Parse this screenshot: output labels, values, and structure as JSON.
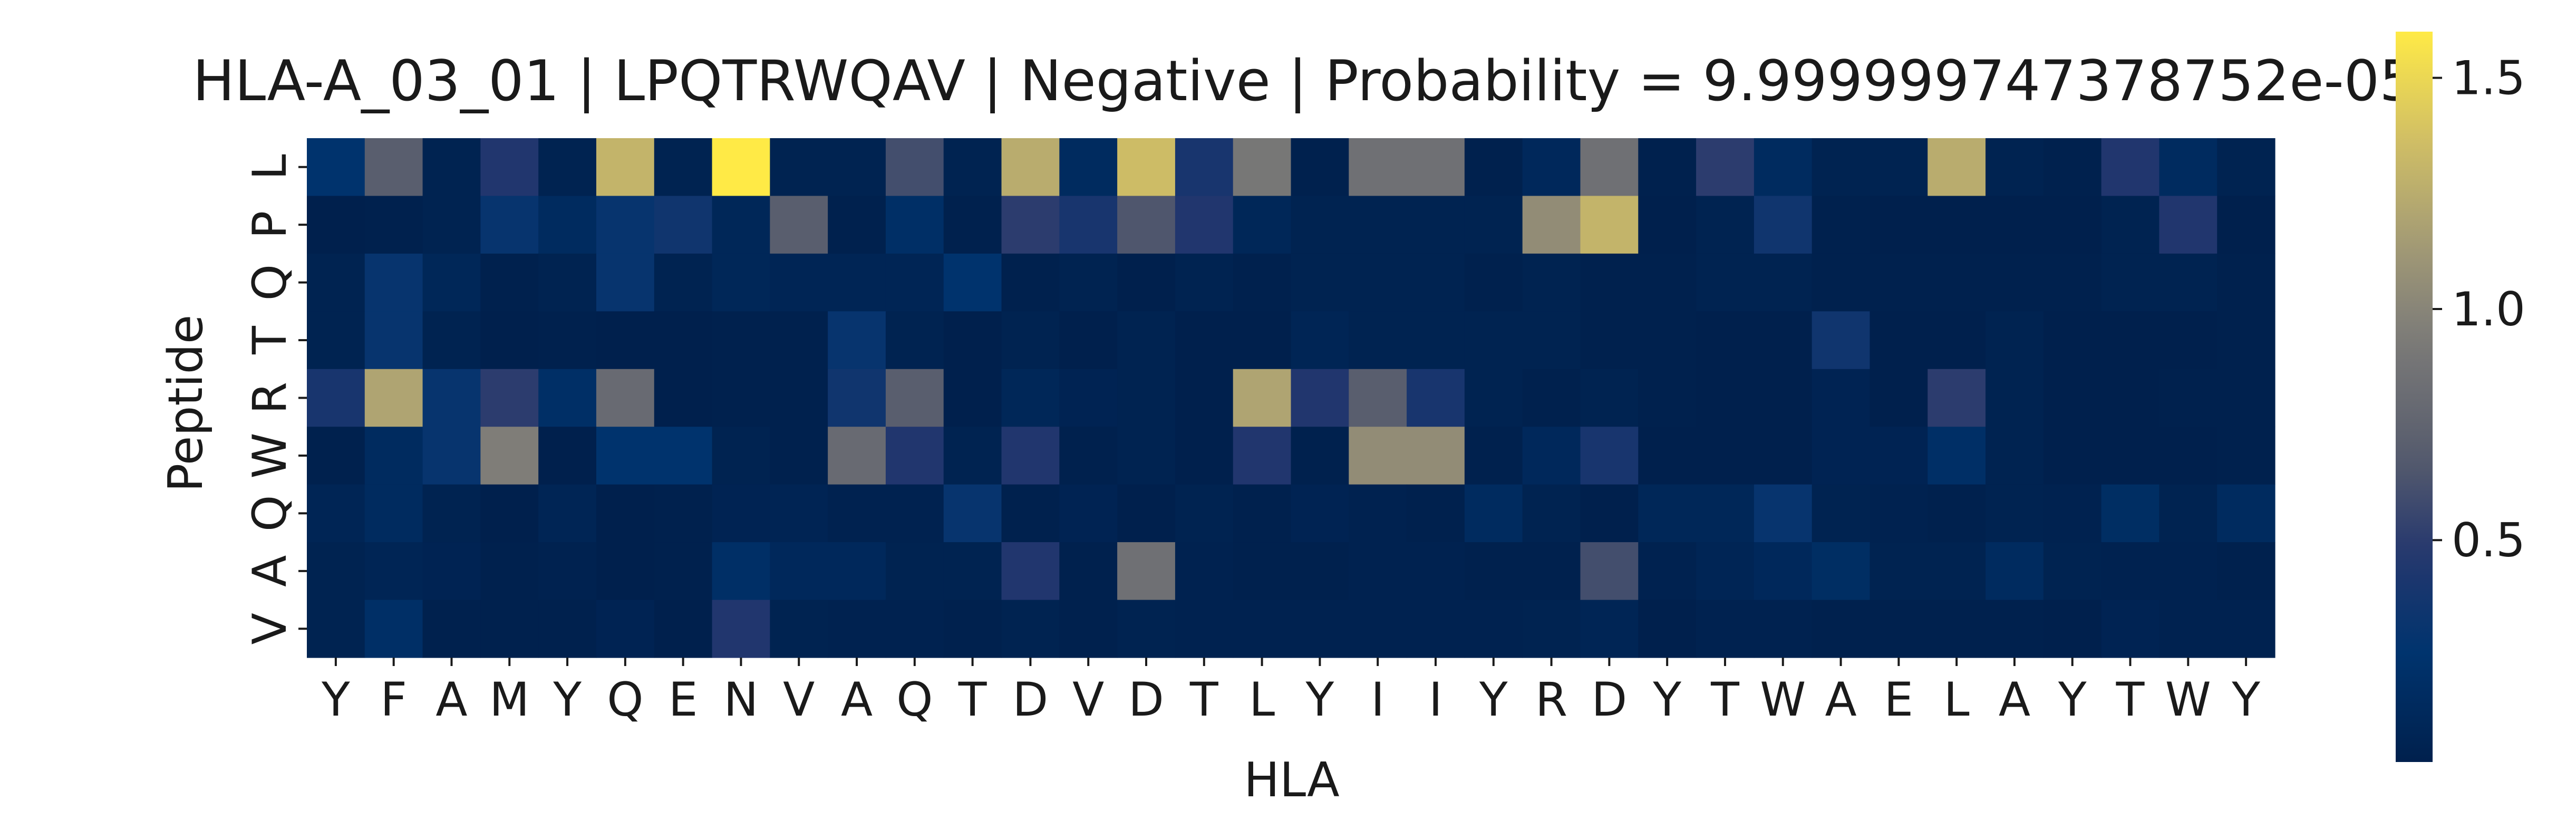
{
  "chart_data": {
    "type": "heatmap",
    "title": "HLA-A_03_01 | LPQTRWQAV | Negative | Probability = 9.999999747378752e-05",
    "xlabel": "HLA",
    "ylabel": "Peptide",
    "x_categories": [
      "Y",
      "F",
      "A",
      "M",
      "Y",
      "Q",
      "E",
      "N",
      "V",
      "A",
      "Q",
      "T",
      "D",
      "V",
      "D",
      "T",
      "L",
      "Y",
      "I",
      "I",
      "Y",
      "R",
      "D",
      "Y",
      "T",
      "W",
      "A",
      "E",
      "L",
      "A",
      "Y",
      "T",
      "W",
      "Y"
    ],
    "y_categories": [
      "L",
      "P",
      "Q",
      "T",
      "R",
      "W",
      "Q",
      "A",
      "V"
    ],
    "values": [
      [
        0.25,
        0.7,
        0.05,
        0.45,
        0.05,
        1.3,
        0.05,
        1.6,
        0.05,
        0.05,
        0.6,
        0.05,
        1.25,
        0.15,
        1.35,
        0.4,
        0.9,
        0.03,
        0.85,
        0.85,
        0.03,
        0.12,
        0.85,
        0.03,
        0.5,
        0.15,
        0.05,
        0.05,
        1.25,
        0.05,
        0.03,
        0.45,
        0.15,
        0.05
      ],
      [
        0.02,
        0.03,
        0.05,
        0.3,
        0.15,
        0.3,
        0.35,
        0.1,
        0.7,
        0.03,
        0.2,
        0.03,
        0.5,
        0.4,
        0.65,
        0.45,
        0.1,
        0.05,
        0.05,
        0.05,
        0.05,
        1.05,
        1.3,
        0.02,
        0.05,
        0.35,
        0.03,
        0.02,
        0.02,
        0.02,
        0.02,
        0.05,
        0.45,
        0.02
      ],
      [
        0.05,
        0.3,
        0.1,
        0.03,
        0.05,
        0.3,
        0.05,
        0.1,
        0.08,
        0.08,
        0.08,
        0.25,
        0.03,
        0.05,
        0.02,
        0.05,
        0.03,
        0.05,
        0.05,
        0.05,
        0.03,
        0.05,
        0.03,
        0.03,
        0.05,
        0.05,
        0.03,
        0.03,
        0.03,
        0.03,
        0.03,
        0.05,
        0.05,
        0.03
      ],
      [
        0.05,
        0.3,
        0.05,
        0.02,
        0.03,
        0.02,
        0.02,
        0.03,
        0.03,
        0.3,
        0.05,
        0.02,
        0.05,
        0.02,
        0.05,
        0.02,
        0.02,
        0.08,
        0.05,
        0.05,
        0.05,
        0.05,
        0.03,
        0.03,
        0.02,
        0.02,
        0.35,
        0.02,
        0.02,
        0.05,
        0.02,
        0.02,
        0.02,
        0.03
      ],
      [
        0.4,
        1.2,
        0.3,
        0.5,
        0.2,
        0.8,
        0.02,
        0.03,
        0.03,
        0.35,
        0.7,
        0.02,
        0.1,
        0.06,
        0.05,
        0.02,
        1.2,
        0.45,
        0.7,
        0.4,
        0.05,
        0.03,
        0.05,
        0.03,
        0.02,
        0.02,
        0.06,
        0.02,
        0.5,
        0.05,
        0.02,
        0.02,
        0.03,
        0.03
      ],
      [
        0.03,
        0.15,
        0.3,
        0.95,
        0.02,
        0.25,
        0.25,
        0.05,
        0.03,
        0.8,
        0.45,
        0.05,
        0.45,
        0.03,
        0.05,
        0.02,
        0.45,
        0.03,
        1.05,
        1.05,
        0.03,
        0.12,
        0.4,
        0.02,
        0.02,
        0.02,
        0.06,
        0.06,
        0.2,
        0.05,
        0.02,
        0.02,
        0.02,
        0.03
      ],
      [
        0.08,
        0.15,
        0.05,
        0.02,
        0.08,
        0.02,
        0.03,
        0.06,
        0.07,
        0.04,
        0.04,
        0.3,
        0.03,
        0.06,
        0.02,
        0.05,
        0.03,
        0.06,
        0.04,
        0.03,
        0.15,
        0.05,
        0.02,
        0.1,
        0.1,
        0.3,
        0.05,
        0.04,
        0.03,
        0.05,
        0.04,
        0.18,
        0.05,
        0.15
      ],
      [
        0.05,
        0.08,
        0.06,
        0.03,
        0.04,
        0.02,
        0.03,
        0.2,
        0.12,
        0.12,
        0.05,
        0.05,
        0.45,
        0.03,
        0.85,
        0.04,
        0.03,
        0.03,
        0.04,
        0.04,
        0.03,
        0.03,
        0.6,
        0.04,
        0.08,
        0.12,
        0.18,
        0.05,
        0.05,
        0.15,
        0.05,
        0.04,
        0.04,
        0.03
      ],
      [
        0.05,
        0.2,
        0.03,
        0.03,
        0.03,
        0.06,
        0.02,
        0.45,
        0.05,
        0.04,
        0.04,
        0.03,
        0.05,
        0.03,
        0.05,
        0.04,
        0.04,
        0.04,
        0.04,
        0.04,
        0.04,
        0.05,
        0.08,
        0.02,
        0.04,
        0.04,
        0.03,
        0.03,
        0.03,
        0.03,
        0.02,
        0.06,
        0.04,
        0.04
      ]
    ],
    "colormap": "cividis",
    "vmin": 0.02,
    "vmax": 1.6,
    "colorbar_ticks": [
      {
        "value": 0.5,
        "label": "0.5"
      },
      {
        "value": 1.0,
        "label": "1.0"
      },
      {
        "value": 1.5,
        "label": "1.5"
      }
    ]
  }
}
